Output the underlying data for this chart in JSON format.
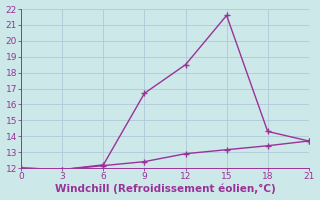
{
  "xlabel": "Windchill (Refroidissement éolien,°C)",
  "x_line1": [
    0,
    3,
    6,
    9,
    12,
    15,
    18,
    21
  ],
  "y_line1": [
    12.0,
    11.9,
    12.2,
    16.7,
    18.5,
    21.6,
    14.3,
    13.7
  ],
  "x_line2": [
    0,
    3,
    6,
    9,
    12,
    15,
    18,
    21
  ],
  "y_line2": [
    12.0,
    11.9,
    12.15,
    12.4,
    12.9,
    13.15,
    13.4,
    13.7
  ],
  "line_color": "#993399",
  "bg_color": "#cde8e8",
  "grid_color": "#b0c8d8",
  "xlim": [
    0,
    21
  ],
  "ylim": [
    12,
    22
  ],
  "xticks": [
    0,
    3,
    6,
    9,
    12,
    15,
    18,
    21
  ],
  "yticks": [
    12,
    13,
    14,
    15,
    16,
    17,
    18,
    19,
    20,
    21,
    22
  ],
  "markersize": 3,
  "linewidth": 1.0,
  "tick_fontsize": 6.5,
  "label_fontsize": 7.5
}
